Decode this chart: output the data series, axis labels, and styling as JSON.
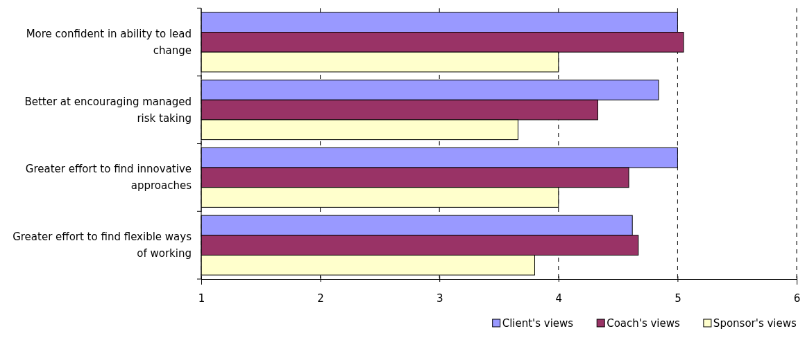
{
  "chart_data": {
    "type": "bar",
    "orientation": "horizontal",
    "categories": [
      "More confident in ability to lead change",
      "Better at encouraging managed risk taking",
      "Greater effort to find innovative approaches",
      "Greater effort to find flexible ways of working"
    ],
    "series": [
      {
        "name": "Client's views",
        "color": "#9999ff",
        "values": [
          5.0,
          4.84,
          5.0,
          4.62
        ]
      },
      {
        "name": "Coach's views",
        "color": "#993366",
        "values": [
          5.05,
          4.33,
          4.59,
          4.67
        ]
      },
      {
        "name": "Sponsor's views",
        "color": "#ffffcc",
        "values": [
          4.0,
          3.66,
          4.0,
          3.8
        ]
      }
    ],
    "xlim": [
      1,
      6
    ],
    "xticks": [
      1,
      2,
      3,
      4,
      5,
      6
    ],
    "grid": "x",
    "legend": "bottom"
  }
}
